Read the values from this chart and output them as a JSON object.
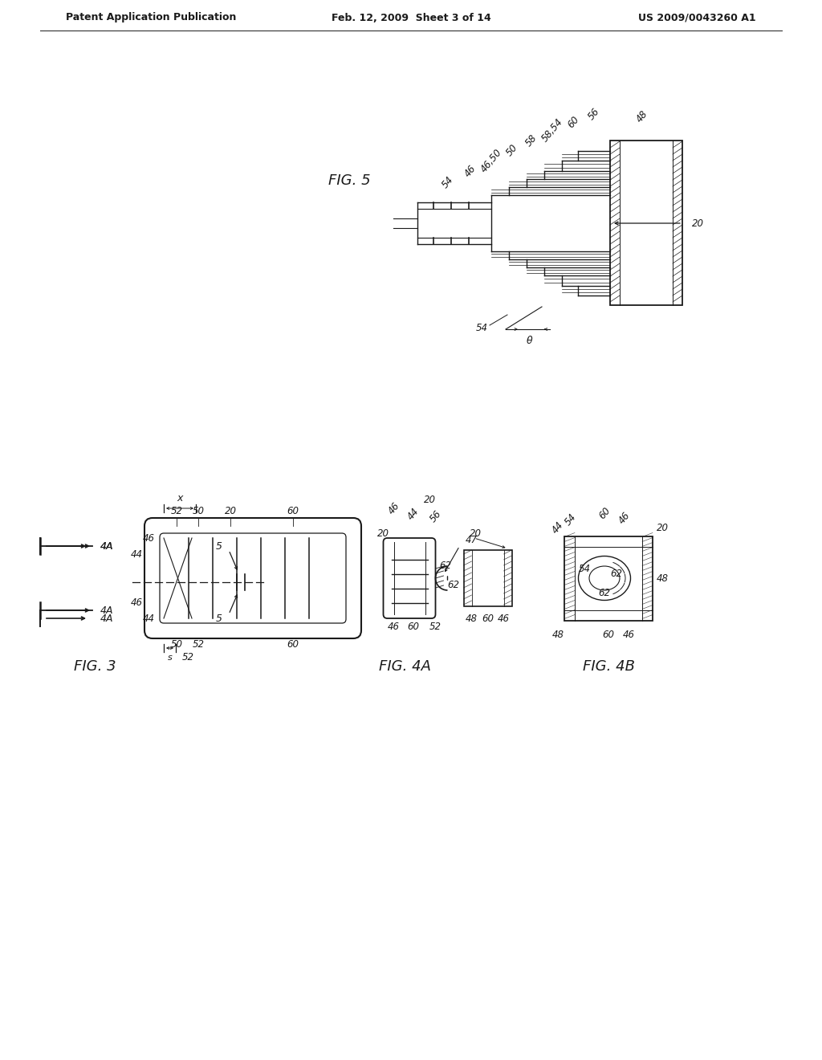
{
  "bg_color": "#ffffff",
  "header_left": "Patent Application Publication",
  "header_mid": "Feb. 12, 2009  Sheet 3 of 14",
  "header_right": "US 2009/0043260 A1",
  "fig5_label": "FIG. 5",
  "fig3_label": "FIG. 3",
  "fig4a_label": "FIG. 4A",
  "fig4b_label": "FIG. 4B",
  "text_color": "#1a1a1a",
  "line_color": "#1a1a1a",
  "header_fontsize": 9,
  "callout_fontsize": 8.5,
  "fig_label_fontsize": 14
}
